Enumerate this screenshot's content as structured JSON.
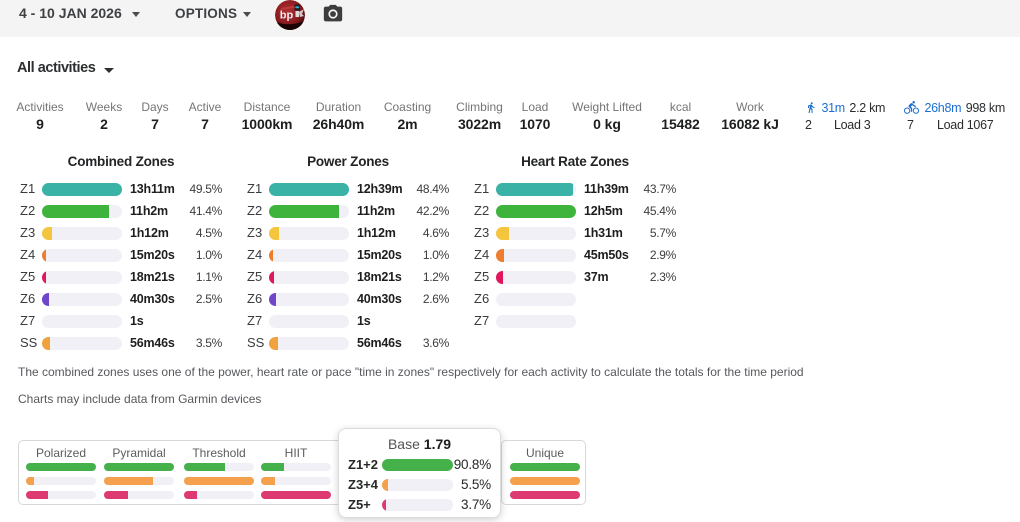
{
  "header": {
    "date_range": "4 - 10 JAN 2026",
    "options_label": "OPTIONS",
    "avatar_text": "bp"
  },
  "filter": {
    "label": "All activities"
  },
  "stats": [
    {
      "label": "Activities",
      "value": "9"
    },
    {
      "label": "Weeks",
      "value": "2"
    },
    {
      "label": "Days",
      "value": "7"
    },
    {
      "label": "Active",
      "value": "7"
    },
    {
      "label": "Distance",
      "value": "1000km"
    },
    {
      "label": "Duration",
      "value": "26h40m"
    },
    {
      "label": "Coasting",
      "value": "2m"
    },
    {
      "label": "Climbing",
      "value": "3022m"
    },
    {
      "label": "Load",
      "value": "1070"
    },
    {
      "label": "Weight Lifted",
      "value": "0 kg"
    },
    {
      "label": "kcal",
      "value": "15482"
    },
    {
      "label": "Work",
      "value": "16082 kJ"
    }
  ],
  "sports": [
    {
      "icon": "run-icon",
      "duration": "31m",
      "distance": "2.2 km",
      "count": "2",
      "load": "Load 3"
    },
    {
      "icon": "bike-icon",
      "duration": "26h8m",
      "distance": "998 km",
      "count": "7",
      "load": "Load 1067"
    }
  ],
  "colors": {
    "zone_fills": [
      "#3ab2a6",
      "#3eb43c",
      "#f4c63e",
      "#ee7d2e",
      "#e0175c",
      "#6f46c9",
      "",
      "#efa23d"
    ],
    "dist_green": "#45b14b",
    "dist_orange": "#f5a04c",
    "dist_pink": "#dd3a72",
    "track": "#f1f0f7",
    "blue": "#1c6fd1"
  },
  "chart_data": [
    {
      "type": "bar",
      "title": "Combined Zones",
      "rows": [
        {
          "zone": "Z1",
          "time": "13h11m",
          "pct": 49.5,
          "pct_label": "49.5%"
        },
        {
          "zone": "Z2",
          "time": "11h2m",
          "pct": 41.4,
          "pct_label": "41.4%"
        },
        {
          "zone": "Z3",
          "time": "1h12m",
          "pct": 4.5,
          "pct_label": "4.5%"
        },
        {
          "zone": "Z4",
          "time": "15m20s",
          "pct": 1.0,
          "pct_label": "1.0%"
        },
        {
          "zone": "Z5",
          "time": "18m21s",
          "pct": 1.1,
          "pct_label": "1.1%"
        },
        {
          "zone": "Z6",
          "time": "40m30s",
          "pct": 2.5,
          "pct_label": "2.5%"
        },
        {
          "zone": "Z7",
          "time": "1s",
          "pct": 0,
          "pct_label": ""
        },
        {
          "zone": "SS",
          "time": "56m46s",
          "pct": 3.5,
          "pct_label": "3.5%"
        }
      ]
    },
    {
      "type": "bar",
      "title": "Power Zones",
      "rows": [
        {
          "zone": "Z1",
          "time": "12h39m",
          "pct": 48.4,
          "pct_label": "48.4%"
        },
        {
          "zone": "Z2",
          "time": "11h2m",
          "pct": 42.2,
          "pct_label": "42.2%"
        },
        {
          "zone": "Z3",
          "time": "1h12m",
          "pct": 4.6,
          "pct_label": "4.6%"
        },
        {
          "zone": "Z4",
          "time": "15m20s",
          "pct": 1.0,
          "pct_label": "1.0%"
        },
        {
          "zone": "Z5",
          "time": "18m21s",
          "pct": 1.2,
          "pct_label": "1.2%"
        },
        {
          "zone": "Z6",
          "time": "40m30s",
          "pct": 2.6,
          "pct_label": "2.6%"
        },
        {
          "zone": "Z7",
          "time": "1s",
          "pct": 0,
          "pct_label": ""
        },
        {
          "zone": "SS",
          "time": "56m46s",
          "pct": 3.6,
          "pct_label": "3.6%"
        }
      ]
    },
    {
      "type": "bar",
      "title": "Heart Rate Zones",
      "rows": [
        {
          "zone": "Z1",
          "time": "11h39m",
          "pct": 43.7,
          "pct_label": "43.7%"
        },
        {
          "zone": "Z2",
          "time": "12h5m",
          "pct": 45.4,
          "pct_label": "45.4%"
        },
        {
          "zone": "Z3",
          "time": "1h31m",
          "pct": 5.7,
          "pct_label": "5.7%"
        },
        {
          "zone": "Z4",
          "time": "45m50s",
          "pct": 2.9,
          "pct_label": "2.9%"
        },
        {
          "zone": "Z5",
          "time": "37m",
          "pct": 2.3,
          "pct_label": "2.3%"
        },
        {
          "zone": "Z6",
          "time": "",
          "pct": 0,
          "pct_label": ""
        },
        {
          "zone": "Z7",
          "time": "",
          "pct": 0,
          "pct_label": ""
        }
      ]
    }
  ],
  "notes": [
    "The combined zones uses one of the power, heart rate or pace \"time in zones\" respectively for each activity to calculate the totals for the time period",
    "Charts may include data from Garmin devices"
  ],
  "distributions": {
    "cards": [
      {
        "label": "Polarized",
        "bars": [
          1.0,
          0.095,
          0.3
        ]
      },
      {
        "label": "Pyramidal",
        "bars": [
          1.0,
          0.69,
          0.33
        ]
      },
      {
        "label": "Threshold",
        "bars": [
          0.57,
          1.0,
          0.17
        ]
      },
      {
        "label": "HIIT",
        "bars": [
          0.31,
          0.19,
          1.0
        ]
      },
      {
        "label": "Base",
        "bars": [
          1.0,
          0.06,
          0.04
        ]
      }
    ],
    "unique_card": {
      "label": "Unique",
      "bars": [
        1.0,
        1.0,
        1.0
      ]
    }
  },
  "popup": {
    "title_prefix": "Base",
    "title_value": "1.79",
    "rows": [
      {
        "label": "Z1+2",
        "pct": 90.8,
        "pct_label": "90.8%"
      },
      {
        "label": "Z3+4",
        "pct": 5.5,
        "pct_label": "5.5%"
      },
      {
        "label": "Z5+",
        "pct": 3.7,
        "pct_label": "3.7%"
      }
    ]
  }
}
